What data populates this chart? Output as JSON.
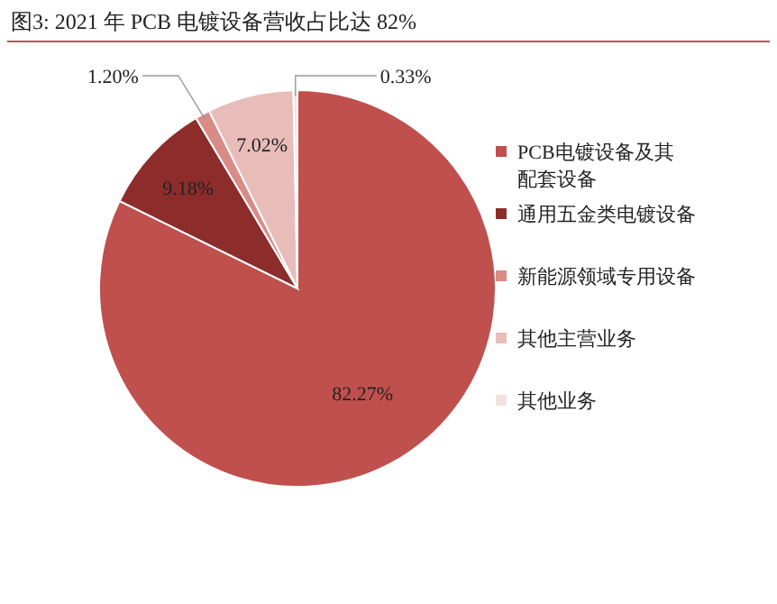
{
  "chart_data": {
    "type": "pie",
    "title": "图3:  2021 年 PCB 电镀设备营收占比达 82%",
    "categories": [
      "PCB电镀设备及其配套设备",
      "通用五金类电镀设备",
      "新能源领域专用设备",
      "其他主营业务",
      "其他业务"
    ],
    "values": [
      82.27,
      9.18,
      1.2,
      7.02,
      0.33
    ],
    "colors": [
      "#c0504d",
      "#8c2d2b",
      "#d98b86",
      "#e8bcb9",
      "#f4e2e1"
    ],
    "value_labels": [
      "82.27%",
      "9.18%",
      "1.20%",
      "7.02%",
      "0.33%"
    ],
    "legend": "right"
  }
}
